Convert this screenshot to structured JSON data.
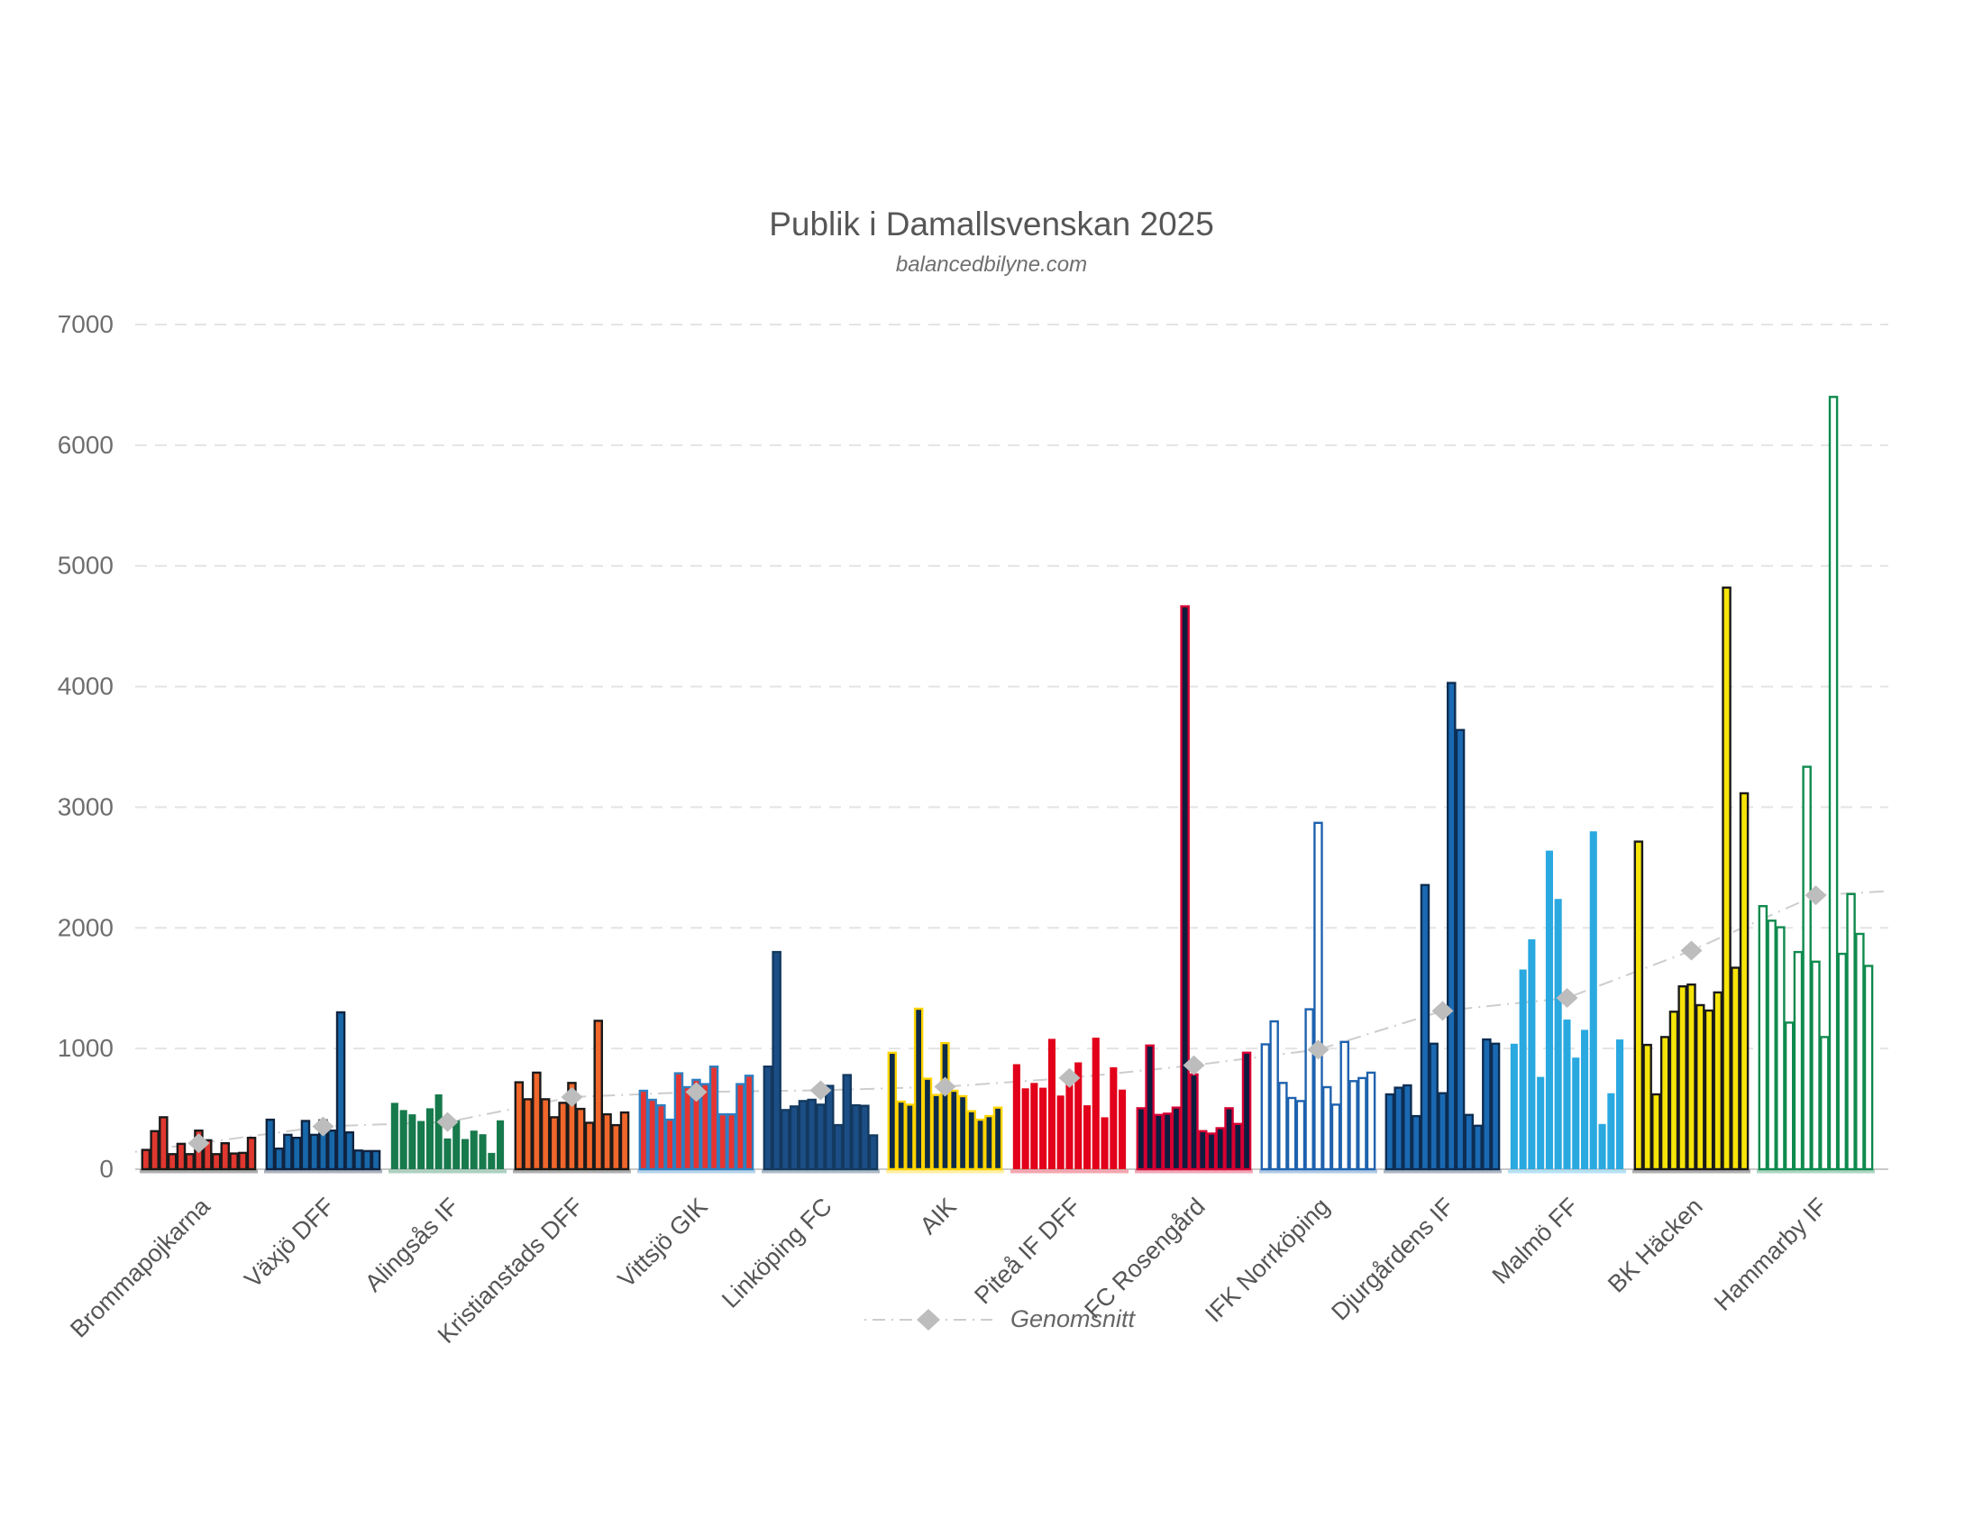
{
  "page": {
    "title": "Publik i Damallsvenskan 2025",
    "subtitle": "balancedbilyne.com"
  },
  "legend": {
    "label": "Genomsnitt",
    "color": "#BDBDBD",
    "line_color": "#CDCDCD"
  },
  "chart_data": {
    "type": "bar",
    "title": "Publik i Damallsvenskan 2025",
    "subtitle": "balancedbilyne.com",
    "xlabel": "",
    "ylabel": "",
    "ylim": [
      0,
      7000
    ],
    "yticks": [
      0,
      1000,
      2000,
      3000,
      4000,
      5000,
      6000,
      7000
    ],
    "grid": "horizontal-dashed",
    "legend_position": "bottom-center",
    "overlay": {
      "name": "Genomsnitt",
      "type": "average-line",
      "marker": "diamond",
      "color": "#BDBDBD"
    },
    "categories": [
      "Brommapojkarna",
      "Växjö DFF",
      "Alingsås IF",
      "Kristianstads DFF",
      "Vittsjö GIK",
      "Linköping FC",
      "AIK",
      "Piteå IF DFF",
      "FC Rosengård",
      "IFK Norrköping",
      "Djurgårdens IF",
      "Malmö FF",
      "BK Häcken",
      "Hammarby IF"
    ],
    "series": [
      {
        "name": "Brommapojkarna",
        "fill": "#E0372F",
        "stroke": "#1A1A1A",
        "values": [
          160,
          315,
          430,
          125,
          210,
          125,
          320,
          240,
          125,
          215,
          130,
          135,
          260
        ],
        "average": 215
      },
      {
        "name": "Växjö DFF",
        "fill": "#1767A9",
        "stroke": "#10233F",
        "values": [
          410,
          170,
          285,
          260,
          400,
          285,
          405,
          320,
          1300,
          305,
          155,
          150,
          150
        ],
        "average": 354
      },
      {
        "name": "Alingsås IF",
        "fill": "#177A4C",
        "stroke": "",
        "values": [
          550,
          490,
          455,
          400,
          505,
          620,
          255,
          405,
          250,
          320,
          290,
          135,
          405
        ],
        "average": 391
      },
      {
        "name": "Kristianstads DFF",
        "fill": "#F0662B",
        "stroke": "#1A1A1A",
        "values": [
          720,
          580,
          800,
          580,
          430,
          550,
          715,
          500,
          385,
          1230,
          455,
          365,
          470
        ],
        "average": 598
      },
      {
        "name": "Vittsjö GIK",
        "fill": "#E63431",
        "stroke": "#2F7FC1",
        "values": [
          650,
          575,
          530,
          410,
          795,
          680,
          740,
          705,
          850,
          455,
          455,
          705,
          775
        ],
        "average": 640
      },
      {
        "name": "Linköping FC",
        "fill": "#1C4E86",
        "stroke": "#13395F",
        "values": [
          850,
          1800,
          490,
          520,
          565,
          575,
          535,
          690,
          365,
          780,
          530,
          525,
          280
        ],
        "average": 654
      },
      {
        "name": "AIK",
        "fill": "#0E2B4A",
        "stroke": "#FFD400",
        "values": [
          965,
          560,
          535,
          1330,
          750,
          615,
          1045,
          650,
          605,
          480,
          410,
          440,
          510
        ],
        "average": 684
      },
      {
        "name": "Piteå IF DFF",
        "fill": "#E2001A",
        "stroke": "",
        "values": [
          870,
          670,
          715,
          675,
          1080,
          610,
          765,
          885,
          530,
          1090,
          430,
          845,
          660
        ],
        "average": 756
      },
      {
        "name": "FC Rosengård",
        "fill": "#0D1C3F",
        "stroke": "#D50032",
        "values": [
          505,
          1025,
          450,
          460,
          510,
          4665,
          785,
          315,
          295,
          340,
          505,
          375,
          965
        ],
        "average": 861
      },
      {
        "name": "IFK Norrköping",
        "fill": "#FFFFFF",
        "stroke": "#1E62AE",
        "values": [
          1035,
          1225,
          715,
          590,
          565,
          1325,
          2870,
          680,
          535,
          1055,
          730,
          755,
          800
        ],
        "average": 991
      },
      {
        "name": "Djurgårdens IF",
        "fill": "#1A69B2",
        "stroke": "#0D2D52",
        "values": [
          620,
          675,
          695,
          440,
          2355,
          1040,
          630,
          4030,
          3640,
          450,
          360,
          1075,
          1040
        ],
        "average": 1312
      },
      {
        "name": "Malmö FF",
        "fill": "#2AA9E0",
        "stroke": "",
        "values": [
          1040,
          1655,
          1905,
          765,
          2640,
          2240,
          1240,
          925,
          1155,
          2800,
          375,
          630,
          1075
        ],
        "average": 1419
      },
      {
        "name": "BK Häcken",
        "fill": "#F7E409",
        "stroke": "#1A1A1A",
        "values": [
          2715,
          1030,
          620,
          1095,
          1305,
          1515,
          1530,
          1360,
          1315,
          1465,
          4820,
          1670,
          3115
        ],
        "average": 1812
      },
      {
        "name": "Hammarby IF",
        "fill": "#FFFFFF",
        "stroke": "#0F8A4E",
        "values": [
          2180,
          2060,
          2005,
          1215,
          1800,
          3335,
          1720,
          1095,
          6400,
          1785,
          2280,
          1950,
          1685
        ],
        "average": 2270
      }
    ]
  }
}
